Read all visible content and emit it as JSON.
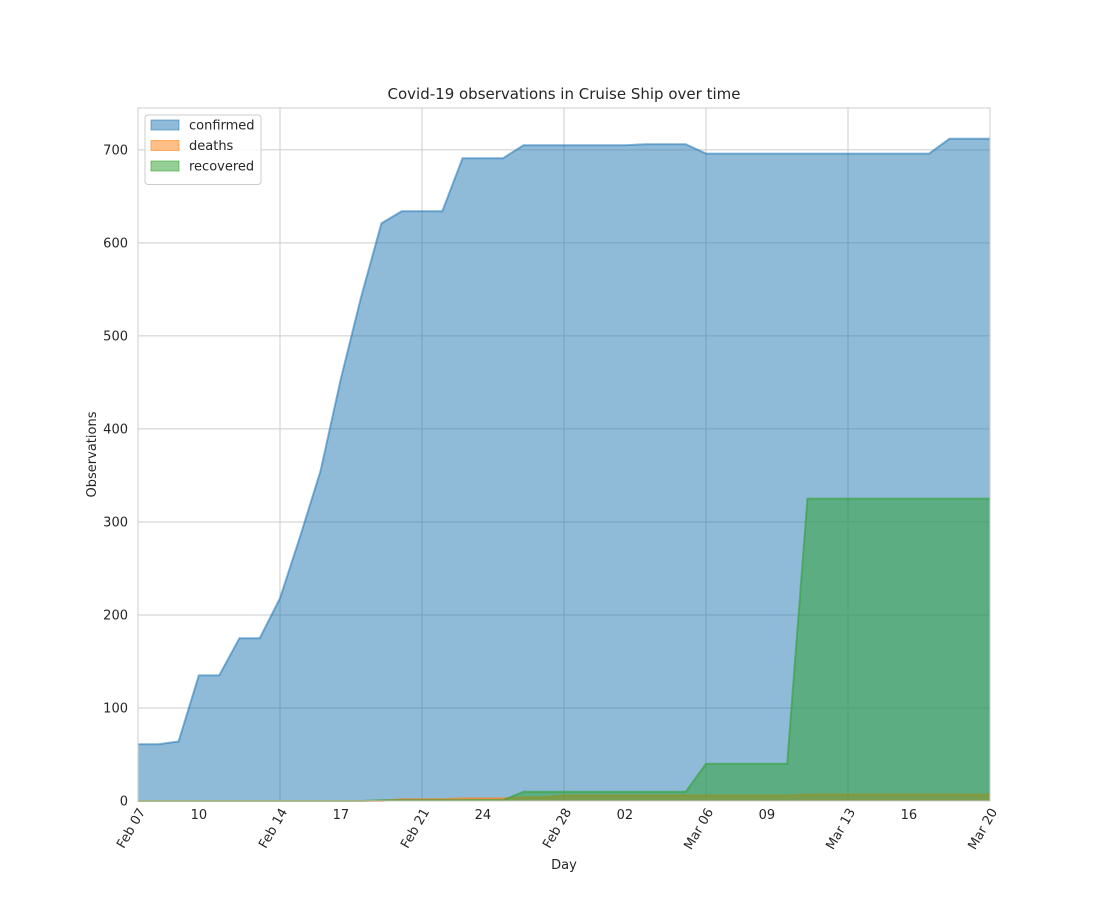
{
  "chart_data": {
    "type": "area",
    "title": "Covid-19 observations in Cruise Ship over time",
    "xlabel": "Day",
    "ylabel": "Observations",
    "ylim": [
      0,
      745
    ],
    "xlim": [
      "2020-02-07",
      "2020-03-20"
    ],
    "grid": true,
    "legend_position": "top-left",
    "stacked": false,
    "y_ticks": [
      0,
      100,
      200,
      300,
      400,
      500,
      600,
      700
    ],
    "x_ticks": [
      {
        "date": "2020-02-07",
        "label": "Feb 07",
        "major": true
      },
      {
        "date": "2020-02-10",
        "label": "10",
        "major": false
      },
      {
        "date": "2020-02-14",
        "label": "Feb 14",
        "major": true
      },
      {
        "date": "2020-02-17",
        "label": "17",
        "major": false
      },
      {
        "date": "2020-02-21",
        "label": "Feb 21",
        "major": true
      },
      {
        "date": "2020-02-24",
        "label": "24",
        "major": false
      },
      {
        "date": "2020-02-28",
        "label": "Feb 28",
        "major": true
      },
      {
        "date": "2020-03-02",
        "label": "02",
        "major": false
      },
      {
        "date": "2020-03-06",
        "label": "Mar 06",
        "major": true
      },
      {
        "date": "2020-03-09",
        "label": "09",
        "major": false
      },
      {
        "date": "2020-03-13",
        "label": "Mar 13",
        "major": true
      },
      {
        "date": "2020-03-16",
        "label": "16",
        "major": false
      },
      {
        "date": "2020-03-20",
        "label": "Mar 20",
        "major": true
      }
    ],
    "x": [
      "2020-02-07",
      "2020-02-08",
      "2020-02-09",
      "2020-02-10",
      "2020-02-11",
      "2020-02-12",
      "2020-02-13",
      "2020-02-14",
      "2020-02-15",
      "2020-02-16",
      "2020-02-17",
      "2020-02-18",
      "2020-02-19",
      "2020-02-20",
      "2020-02-21",
      "2020-02-22",
      "2020-02-23",
      "2020-02-24",
      "2020-02-25",
      "2020-02-26",
      "2020-02-27",
      "2020-02-28",
      "2020-02-29",
      "2020-03-01",
      "2020-03-02",
      "2020-03-03",
      "2020-03-04",
      "2020-03-05",
      "2020-03-06",
      "2020-03-07",
      "2020-03-08",
      "2020-03-09",
      "2020-03-10",
      "2020-03-11",
      "2020-03-12",
      "2020-03-13",
      "2020-03-14",
      "2020-03-15",
      "2020-03-16",
      "2020-03-17",
      "2020-03-18",
      "2020-03-19",
      "2020-03-20"
    ],
    "series": [
      {
        "name": "confirmed",
        "color": "#1f77b4",
        "values": [
          61,
          61,
          64,
          135,
          135,
          175,
          175,
          218,
          285,
          355,
          454,
          542,
          621,
          634,
          634,
          634,
          691,
          691,
          691,
          705,
          705,
          705,
          705,
          705,
          705,
          706,
          706,
          706,
          696,
          696,
          696,
          696,
          696,
          696,
          696,
          696,
          696,
          696,
          696,
          696,
          712,
          712,
          712
        ]
      },
      {
        "name": "deaths",
        "color": "#ff7f0e",
        "values": [
          0,
          0,
          0,
          0,
          0,
          0,
          0,
          0,
          0,
          0,
          0,
          0,
          0,
          2,
          2,
          2,
          3,
          3,
          3,
          4,
          4,
          6,
          6,
          6,
          6,
          6,
          6,
          6,
          6,
          6,
          6,
          6,
          6,
          7,
          7,
          7,
          7,
          7,
          7,
          7,
          7,
          7,
          7
        ]
      },
      {
        "name": "recovered",
        "color": "#2ca02c",
        "values": [
          0,
          0,
          0,
          0,
          0,
          0,
          0,
          0,
          0,
          0,
          0,
          0,
          1,
          1,
          1,
          1,
          1,
          1,
          1,
          10,
          10,
          10,
          10,
          10,
          10,
          10,
          10,
          10,
          40,
          40,
          40,
          40,
          40,
          325,
          325,
          325,
          325,
          325,
          325,
          325,
          325,
          325,
          325
        ]
      }
    ]
  }
}
